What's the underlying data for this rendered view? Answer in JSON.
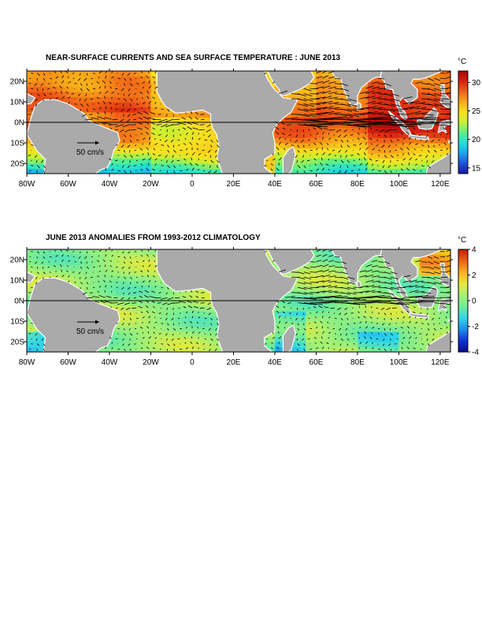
{
  "panels": [
    {
      "title": "NEAR-SURFACE CURRENTS AND SEA SURFACE TEMPERATURE : JUNE 2013",
      "field": "sst",
      "colorbar": {
        "unit_label": "°C",
        "min": 14,
        "max": 32,
        "ticks": [
          "30",
          "25",
          "20",
          "15"
        ],
        "tick_values": [
          30,
          25,
          20,
          15
        ],
        "colors": [
          "#1a1aa6",
          "#1f4fe0",
          "#18a8f0",
          "#1fe0d8",
          "#5af08a",
          "#c8f030",
          "#f8e020",
          "#f8a818",
          "#f06018",
          "#d82010",
          "#a80808"
        ]
      },
      "reference_vector_label": "50 cm/s"
    },
    {
      "title": "JUNE 2013 ANOMALIES FROM 1993-2012 CLIMATOLOGY",
      "field": "anomaly",
      "colorbar": {
        "unit_label": "°C",
        "min": -4,
        "max": 4,
        "ticks": [
          "4",
          "2",
          "0",
          "-2",
          "-4"
        ],
        "tick_values": [
          4,
          2,
          0,
          -2,
          -4
        ],
        "colors": [
          "#0a0a90",
          "#1030d8",
          "#1890f0",
          "#30d8e8",
          "#70ec98",
          "#a8f070",
          "#e8e838",
          "#f8b020",
          "#f06010",
          "#c81808"
        ]
      },
      "reference_vector_label": "50 cm/s"
    }
  ],
  "map": {
    "lon_range": [
      -80,
      125
    ],
    "lat_range": [
      -25,
      25
    ],
    "x_ticks": [
      "80W",
      "60W",
      "40W",
      "20W",
      "0",
      "20E",
      "40E",
      "60E",
      "80E",
      "100E",
      "120E"
    ],
    "x_tick_values": [
      -80,
      -60,
      -40,
      -20,
      0,
      20,
      40,
      60,
      80,
      100,
      120
    ],
    "y_ticks": [
      "20N",
      "10N",
      "0N",
      "10S",
      "20S"
    ],
    "y_tick_values": [
      20,
      10,
      0,
      -10,
      -20
    ],
    "land_color": "#aaaaaa",
    "equator_line": true
  }
}
